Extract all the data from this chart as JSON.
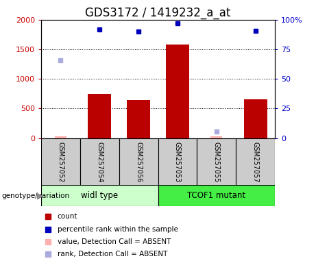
{
  "title": "GDS3172 / 1419232_a_at",
  "samples": [
    "GSM257052",
    "GSM257054",
    "GSM257056",
    "GSM257053",
    "GSM257055",
    "GSM257057"
  ],
  "group_labels": [
    "widl type",
    "TCOF1 mutant"
  ],
  "bar_values": [
    null,
    750,
    640,
    1580,
    null,
    655
  ],
  "bar_color": "#BB0000",
  "bar_absent_values": [
    30,
    null,
    null,
    null,
    25,
    null
  ],
  "bar_absent_color": "#FFB0B0",
  "blue_rank_values": [
    null,
    1830,
    1805,
    1940,
    null,
    1815
  ],
  "blue_rank_color": "#0000BB",
  "blue_absent_rank_values": [
    1320,
    null,
    null,
    null,
    115,
    null
  ],
  "blue_absent_rank_color": "#AAAADD",
  "ylim": [
    0,
    2000
  ],
  "yticks": [
    0,
    500,
    1000,
    1500,
    2000
  ],
  "left_ytick_labels": [
    "0",
    "500",
    "1000",
    "1500",
    "2000"
  ],
  "right_ytick_labels": [
    "0",
    "25",
    "50",
    "75",
    "100%"
  ],
  "left_tick_color": "#CC0000",
  "right_tick_color": "#0000CC",
  "title_fontsize": 12,
  "tick_fontsize": 8,
  "sample_fontsize": 7,
  "legend_items": [
    {
      "label": "count",
      "color": "#BB0000"
    },
    {
      "label": "percentile rank within the sample",
      "color": "#0000BB"
    },
    {
      "label": "value, Detection Call = ABSENT",
      "color": "#FFB0B0"
    },
    {
      "label": "rank, Detection Call = ABSENT",
      "color": "#AAAADD"
    }
  ],
  "sample_box_color": "#CCCCCC",
  "wt_color": "#CCFFCC",
  "mutant_color": "#44EE44",
  "bar_width": 0.6
}
